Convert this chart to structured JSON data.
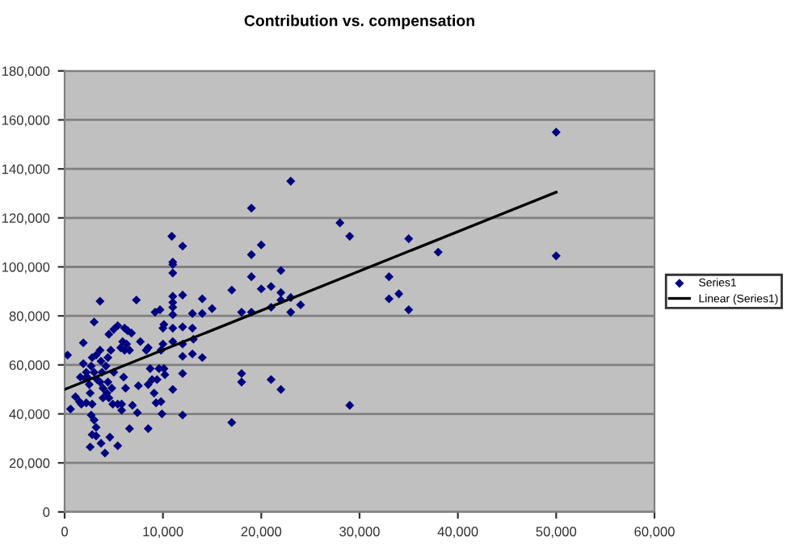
{
  "chart_data": {
    "type": "scatter",
    "title": "Contribution vs. compensation",
    "xlim": [
      0,
      60000
    ],
    "xticks": [
      {
        "value": 0,
        "label": "0"
      },
      {
        "value": 10000,
        "label": "10,000"
      },
      {
        "value": 20000,
        "label": "20,000"
      },
      {
        "value": 30000,
        "label": "30,000"
      },
      {
        "value": 40000,
        "label": "40,000"
      },
      {
        "value": 50000,
        "label": "50,000"
      },
      {
        "value": 60000,
        "label": "60,000"
      }
    ],
    "ylim": [
      0,
      180000
    ],
    "yticks": [
      {
        "value": 0,
        "label": "0"
      },
      {
        "value": 20000,
        "label": "20,000"
      },
      {
        "value": 40000,
        "label": "40,000"
      },
      {
        "value": 60000,
        "label": "60,000"
      },
      {
        "value": 80000,
        "label": "80,000"
      },
      {
        "value": 100000,
        "label": "100,000"
      },
      {
        "value": 120000,
        "label": "120,000"
      },
      {
        "value": 140000,
        "label": "140,000"
      },
      {
        "value": 160000,
        "label": "160,000"
      },
      {
        "value": 180000,
        "label": "180,000"
      }
    ],
    "grid": "y",
    "legend": "right",
    "series": [
      {
        "name": "Series1",
        "color": "#000080",
        "marker": "diamond",
        "x": [
          300,
          600,
          1900,
          1100,
          1500,
          1700,
          2200,
          1600,
          2100,
          2300,
          1900,
          2200,
          2500,
          3000,
          3600,
          2800,
          3200,
          2700,
          3000,
          3300,
          2600,
          2800,
          2700,
          3000,
          3200,
          2800,
          3200,
          2600,
          3700,
          4100,
          4600,
          5400,
          3600,
          3700,
          3800,
          3600,
          3900,
          4400,
          4800,
          4300,
          3900,
          4500,
          4200,
          4400,
          4500,
          5000,
          5400,
          4700,
          5000,
          4900,
          5400,
          5700,
          5900,
          6100,
          6400,
          6800,
          6100,
          6600,
          6300,
          6000,
          6200,
          5800,
          5800,
          6600,
          6900,
          7300,
          7700,
          7500,
          7400,
          8500,
          8500,
          8300,
          8500,
          8700,
          8900,
          9100,
          9300,
          9200,
          9700,
          9600,
          9400,
          9800,
          10000,
          10000,
          10100,
          9800,
          9900,
          10100,
          10200,
          10900,
          11000,
          11000,
          11000,
          11000,
          11000,
          11000,
          11000,
          11000,
          11000,
          11000,
          12000,
          12000,
          12000,
          12000,
          12000,
          12000,
          12000,
          13000,
          13000,
          13100,
          13000,
          14000,
          14000,
          14000,
          15000,
          50000,
          50000,
          23000,
          19000,
          28000,
          29000,
          35000,
          20000,
          19000,
          38000,
          22000,
          19000,
          33000,
          17000,
          20000,
          21000,
          22000,
          22000,
          23000,
          24000,
          21000,
          23000,
          18000,
          19000,
          33000,
          34000,
          35000,
          18000,
          18000,
          21000,
          22000,
          29000,
          17000
        ],
        "values": [
          64000,
          42000,
          69000,
          47000,
          45000,
          44000,
          44500,
          55000,
          54500,
          55000,
          60500,
          57000,
          52000,
          77500,
          86000,
          63000,
          64000,
          59500,
          57000,
          54000,
          48500,
          44000,
          39500,
          37500,
          34500,
          31500,
          31000,
          26500,
          28000,
          24000,
          30500,
          27000,
          66000,
          61500,
          57000,
          53000,
          50500,
          53000,
          50500,
          48500,
          46500,
          46500,
          59500,
          63000,
          72500,
          74500,
          76000,
          66000,
          57000,
          44000,
          44000,
          67000,
          69500,
          75000,
          74000,
          73000,
          66000,
          66000,
          68500,
          55000,
          50500,
          44000,
          41500,
          34000,
          43500,
          86500,
          69500,
          51500,
          40500,
          52000,
          34000,
          66000,
          67000,
          58500,
          54000,
          48500,
          44500,
          81500,
          82500,
          58500,
          54000,
          66000,
          68500,
          75000,
          76500,
          45000,
          40000,
          58500,
          56000,
          112500,
          102000,
          101000,
          97500,
          88000,
          85500,
          83500,
          80500,
          75000,
          69500,
          50000,
          108500,
          88500,
          75500,
          68500,
          63500,
          56500,
          39500,
          81000,
          75000,
          70500,
          64500,
          87000,
          81000,
          63000,
          83000,
          155000,
          104500,
          135000,
          124000,
          118000,
          112500,
          111500,
          109000,
          105000,
          106000,
          98500,
          96000,
          96000,
          90500,
          91000,
          92000,
          89500,
          86500,
          87500,
          84500,
          83500,
          81500,
          81500,
          81500,
          87000,
          89000,
          82500,
          56500,
          53000,
          54000,
          50000,
          43500,
          36500
        ]
      },
      {
        "name": "Linear (Series1)",
        "type": "line",
        "color": "#000000",
        "marker": "none",
        "line_style": "solid",
        "x": [
          0,
          50000
        ],
        "values": [
          50000,
          130500
        ]
      }
    ]
  }
}
